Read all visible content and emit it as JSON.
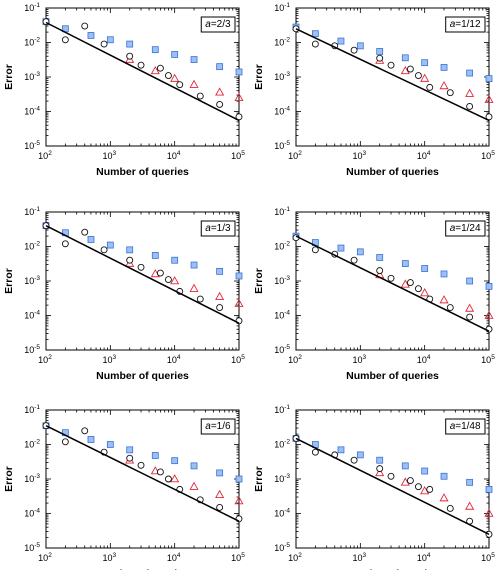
{
  "chart_data": [
    {
      "type": "scatter",
      "xscale": "log",
      "yscale": "log",
      "xlim": [
        100,
        100000
      ],
      "ylim": [
        1e-05,
        0.1
      ],
      "xlabel": "Number of queries",
      "ylabel": "Error",
      "x_ticks": [
        "10^2",
        "10^3",
        "10^4",
        "10^5"
      ],
      "y_ticks": [
        "10^-5",
        "10^-4",
        "10^-3",
        "10^-2",
        "10^-1"
      ],
      "annotation": {
        "italic": "a",
        "rest": "=2/3"
      },
      "series": [
        {
          "marker": "square",
          "x": [
            100,
            200,
            500,
            1000,
            2000,
            5000,
            10000,
            20000,
            50000,
            100000
          ],
          "y": [
            0.04,
            0.025,
            0.016,
            0.012,
            0.009,
            0.0062,
            0.0045,
            0.0032,
            0.002,
            0.0014
          ]
        },
        {
          "marker": "triangle",
          "x": [
            2000,
            5000,
            10000,
            20000,
            50000,
            100000
          ],
          "y": [
            0.0032,
            0.0015,
            0.0009,
            0.0006,
            0.00036,
            0.00025
          ]
        },
        {
          "marker": "circle",
          "x": [
            100,
            200,
            400,
            800,
            2000,
            3000,
            6000,
            8000,
            12000,
            25000,
            50000,
            100000
          ],
          "y": [
            0.04,
            0.012,
            0.03,
            0.009,
            0.004,
            0.0022,
            0.0018,
            0.0011,
            0.0006,
            0.00028,
            0.00016,
            7e-05
          ]
        }
      ],
      "fit_line": {
        "x": [
          100,
          100000
        ],
        "y": [
          0.038,
          5.5e-05
        ]
      }
    },
    {
      "type": "scatter",
      "xscale": "log",
      "yscale": "log",
      "xlim": [
        100,
        100000
      ],
      "ylim": [
        1e-05,
        0.1
      ],
      "xlabel": "Number of queries",
      "ylabel": "Error",
      "x_ticks": [
        "10^2",
        "10^3",
        "10^4",
        "10^5"
      ],
      "y_ticks": [
        "10^-5",
        "10^-4",
        "10^-3",
        "10^-2",
        "10^-1"
      ],
      "annotation": {
        "italic": "a",
        "rest": "=1/12"
      },
      "series": [
        {
          "marker": "square",
          "x": [
            100,
            200,
            500,
            1000,
            2000,
            5000,
            10000,
            20000,
            50000,
            100000
          ],
          "y": [
            0.028,
            0.018,
            0.011,
            0.008,
            0.0055,
            0.0036,
            0.0026,
            0.0019,
            0.0013,
            0.0009
          ]
        },
        {
          "marker": "triangle",
          "x": [
            2000,
            5000,
            10000,
            20000,
            50000,
            100000
          ],
          "y": [
            0.003,
            0.0015,
            0.0009,
            0.00055,
            0.00033,
            0.00022
          ]
        },
        {
          "marker": "circle",
          "x": [
            100,
            200,
            400,
            800,
            2000,
            3000,
            6000,
            8000,
            12000,
            25000,
            50000,
            100000
          ],
          "y": [
            0.025,
            0.009,
            0.008,
            0.006,
            0.0035,
            0.0022,
            0.0017,
            0.0011,
            0.0005,
            0.00035,
            0.00014,
            7e-05
          ]
        }
      ],
      "fit_line": {
        "x": [
          100,
          100000
        ],
        "y": [
          0.025,
          5.5e-05
        ]
      }
    },
    {
      "type": "scatter",
      "xscale": "log",
      "yscale": "log",
      "xlim": [
        100,
        100000
      ],
      "ylim": [
        1e-05,
        0.1
      ],
      "xlabel": "Number of queries",
      "ylabel": "Error",
      "x_ticks": [
        "10^2",
        "10^3",
        "10^4",
        "10^5"
      ],
      "y_ticks": [
        "10^-5",
        "10^-4",
        "10^-3",
        "10^-2",
        "10^-1"
      ],
      "annotation": {
        "italic": "a",
        "rest": "=1/3"
      },
      "series": [
        {
          "marker": "square",
          "x": [
            100,
            200,
            500,
            1000,
            2000,
            5000,
            10000,
            20000,
            50000,
            100000
          ],
          "y": [
            0.04,
            0.025,
            0.016,
            0.011,
            0.008,
            0.0055,
            0.004,
            0.0029,
            0.0019,
            0.0014
          ]
        },
        {
          "marker": "triangle",
          "x": [
            2000,
            5000,
            10000,
            20000,
            50000,
            100000
          ],
          "y": [
            0.0032,
            0.0016,
            0.001,
            0.0006,
            0.00035,
            0.00022
          ]
        },
        {
          "marker": "circle",
          "x": [
            100,
            200,
            400,
            800,
            2000,
            3000,
            6000,
            8000,
            12000,
            25000,
            50000,
            100000
          ],
          "y": [
            0.04,
            0.012,
            0.026,
            0.008,
            0.004,
            0.0025,
            0.0017,
            0.0011,
            0.0005,
            0.0003,
            0.00017,
            7e-05
          ]
        }
      ],
      "fit_line": {
        "x": [
          100,
          100000
        ],
        "y": [
          0.04,
          6e-05
        ]
      }
    },
    {
      "type": "scatter",
      "xscale": "log",
      "yscale": "log",
      "xlim": [
        100,
        100000
      ],
      "ylim": [
        1e-05,
        0.1
      ],
      "xlabel": "Number of queries",
      "ylabel": "Error",
      "x_ticks": [
        "10^2",
        "10^3",
        "10^4",
        "10^5"
      ],
      "y_ticks": [
        "10^-5",
        "10^-4",
        "10^-3",
        "10^-2",
        "10^-1"
      ],
      "annotation": {
        "italic": "a",
        "rest": "=1/24"
      },
      "series": [
        {
          "marker": "square",
          "x": [
            100,
            200,
            500,
            1000,
            2000,
            5000,
            10000,
            20000,
            50000,
            100000
          ],
          "y": [
            0.02,
            0.013,
            0.009,
            0.007,
            0.0048,
            0.0032,
            0.0023,
            0.0016,
            0.001,
            0.0007
          ]
        },
        {
          "marker": "triangle",
          "x": [
            2000,
            5000,
            10000,
            20000,
            50000,
            100000
          ],
          "y": [
            0.0015,
            0.0008,
            0.00045,
            0.00028,
            0.00016,
            0.0001
          ]
        },
        {
          "marker": "circle",
          "x": [
            100,
            200,
            400,
            800,
            2000,
            3000,
            6000,
            8000,
            12000,
            25000,
            50000,
            100000
          ],
          "y": [
            0.018,
            0.008,
            0.006,
            0.004,
            0.002,
            0.0012,
            0.0009,
            0.0006,
            0.0003,
            0.00017,
            9e-05,
            4e-05
          ]
        }
      ],
      "fit_line": {
        "x": [
          100,
          100000
        ],
        "y": [
          0.02,
          3.5e-05
        ]
      }
    },
    {
      "type": "scatter",
      "xscale": "log",
      "yscale": "log",
      "xlim": [
        100,
        100000
      ],
      "ylim": [
        1e-05,
        0.1
      ],
      "xlabel": "Number of queries",
      "ylabel": "Error",
      "x_ticks": [
        "10^2",
        "10^3",
        "10^4",
        "10^5"
      ],
      "y_ticks": [
        "10^-5",
        "10^-4",
        "10^-3",
        "10^-2",
        "10^-1"
      ],
      "annotation": {
        "italic": "a",
        "rest": "=1/6"
      },
      "series": [
        {
          "marker": "square",
          "x": [
            100,
            200,
            500,
            1000,
            2000,
            5000,
            10000,
            20000,
            50000,
            100000
          ],
          "y": [
            0.035,
            0.022,
            0.014,
            0.01,
            0.007,
            0.0048,
            0.0034,
            0.0024,
            0.0015,
            0.001
          ]
        },
        {
          "marker": "triangle",
          "x": [
            2000,
            5000,
            10000,
            20000,
            50000,
            100000
          ],
          "y": [
            0.0035,
            0.0017,
            0.001,
            0.0006,
            0.00035,
            0.00023
          ]
        },
        {
          "marker": "circle",
          "x": [
            100,
            200,
            400,
            800,
            2000,
            3000,
            6000,
            8000,
            12000,
            25000,
            50000,
            100000
          ],
          "y": [
            0.035,
            0.012,
            0.025,
            0.006,
            0.004,
            0.0025,
            0.0016,
            0.001,
            0.0005,
            0.00025,
            0.00015,
            7e-05
          ]
        }
      ],
      "fit_line": {
        "x": [
          100,
          100000
        ],
        "y": [
          0.035,
          6e-05
        ]
      }
    },
    {
      "type": "scatter",
      "xscale": "log",
      "yscale": "log",
      "xlim": [
        100,
        100000
      ],
      "ylim": [
        1e-05,
        0.1
      ],
      "xlabel": "Number of queries",
      "ylabel": "Error",
      "x_ticks": [
        "10^2",
        "10^3",
        "10^4",
        "10^5"
      ],
      "y_ticks": [
        "10^-5",
        "10^-4",
        "10^-3",
        "10^-2",
        "10^-1"
      ],
      "annotation": {
        "italic": "a",
        "rest": "=1/48"
      },
      "series": [
        {
          "marker": "square",
          "x": [
            100,
            200,
            500,
            1000,
            2000,
            5000,
            10000,
            20000,
            50000,
            100000
          ],
          "y": [
            0.015,
            0.01,
            0.007,
            0.005,
            0.0035,
            0.0024,
            0.0017,
            0.0012,
            0.0008,
            0.0005
          ]
        },
        {
          "marker": "triangle",
          "x": [
            2000,
            5000,
            10000,
            20000,
            50000,
            100000
          ],
          "y": [
            0.0015,
            0.0008,
            0.00045,
            0.00028,
            0.00016,
            0.0001
          ]
        },
        {
          "marker": "circle",
          "x": [
            100,
            200,
            400,
            800,
            2000,
            3000,
            6000,
            8000,
            12000,
            25000,
            50000,
            100000
          ],
          "y": [
            0.015,
            0.006,
            0.005,
            0.0035,
            0.002,
            0.0012,
            0.0009,
            0.0006,
            0.0005,
            0.00014,
            6e-05,
            2.5e-05
          ]
        }
      ],
      "fit_line": {
        "x": [
          100,
          100000
        ],
        "y": [
          0.015,
          2.5e-05
        ]
      }
    }
  ],
  "colors": {
    "square_fill": "#9cc0f2",
    "square_stroke": "#3a72d8",
    "triangle_stroke": "#e2273a",
    "circle_stroke": "#111111",
    "line": "#000000"
  }
}
